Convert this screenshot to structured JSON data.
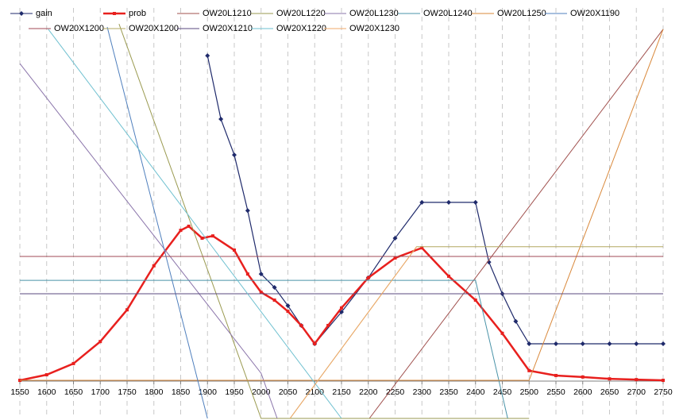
{
  "chart_data": {
    "type": "line",
    "xlim": [
      1550,
      2750
    ],
    "xticks": [
      1550,
      1600,
      1650,
      1700,
      1750,
      1800,
      1850,
      1900,
      1950,
      2000,
      2050,
      2100,
      2150,
      2200,
      2250,
      2300,
      2350,
      2400,
      2450,
      2500,
      2550,
      2600,
      2650,
      2700,
      2750
    ],
    "ylim": [
      -10,
      100
    ],
    "grid": true,
    "legend": "top",
    "series": [
      {
        "name": "gain",
        "color": "#1f2a6b",
        "marker": "diamond",
        "x": [
          1900,
          1925,
          1950,
          1975,
          2000,
          2025,
          2050,
          2075,
          2100,
          2150,
          2200,
          2250,
          2300,
          2350,
          2400,
          2425,
          2450,
          2475,
          2500,
          2550,
          2600,
          2650,
          2700,
          2750
        ],
        "values": [
          87.2,
          70.2,
          60.6,
          45.7,
          28.7,
          25.1,
          20.2,
          14.9,
          10,
          18.5,
          27.7,
          38.3,
          47.9,
          47.9,
          47.9,
          31.9,
          23.4,
          16,
          10,
          10,
          10,
          10,
          10,
          10
        ]
      },
      {
        "name": "prob",
        "color": "#e8201e",
        "marker": "square",
        "x": [
          1550,
          1600,
          1650,
          1700,
          1750,
          1800,
          1850,
          1865,
          1890,
          1910,
          1950,
          1975,
          2000,
          2025,
          2050,
          2075,
          2100,
          2125,
          2150,
          2200,
          2250,
          2300,
          2350,
          2400,
          2450,
          2500,
          2550,
          2600,
          2650,
          2700,
          2750
        ],
        "values": [
          0.2,
          1.7,
          4.7,
          10.6,
          19.1,
          30.9,
          40.4,
          41.5,
          38.3,
          38.9,
          35.1,
          28.7,
          23.8,
          21.7,
          18.7,
          14.9,
          10,
          14.9,
          19.6,
          27.7,
          33,
          35.7,
          28.1,
          21.7,
          12.8,
          2.8,
          1.5,
          1.1,
          0.6,
          0.4,
          0.2
        ]
      },
      {
        "name": "OW20L1210",
        "color": "#a0504d",
        "x": [
          2202,
          2750
        ],
        "values": [
          -10,
          94.3
        ]
      },
      {
        "name": "OW20L1220",
        "color": "#9a9a50",
        "x": [
          1735,
          2000,
          2500
        ],
        "values": [
          95.7,
          -10,
          -10
        ]
      },
      {
        "name": "OW20L1230",
        "color": "#8a74aa",
        "x": [
          1550,
          2000,
          2030
        ],
        "values": [
          85.1,
          2.1,
          -10
        ]
      },
      {
        "name": "OW20L1240",
        "color": "#4a93a8",
        "x": [
          1550,
          2400,
          2460
        ],
        "values": [
          27,
          27,
          -10
        ]
      },
      {
        "name": "OW20L1250",
        "color": "#d9883a",
        "x": [
          1550,
          2500,
          2750
        ],
        "values": [
          0.2,
          0.2,
          94.3
        ]
      },
      {
        "name": "OW20X1190",
        "color": "#4f7fbd",
        "x": [
          1713,
          1900
        ],
        "values": [
          94.9,
          -10
        ]
      },
      {
        "name": "OW20X1200",
        "color": "#a04a55",
        "x": [
          1550,
          2750
        ],
        "values": [
          33.4,
          33.4
        ]
      },
      {
        "name": "OW20X1200",
        "color": "#b3a860",
        "x": [
          2054,
          2290,
          2750
        ],
        "values": [
          -10,
          36,
          36
        ]
      },
      {
        "name": "OW20X1210",
        "color": "#5a4a7f",
        "x": [
          1550,
          2750
        ],
        "values": [
          23.4,
          23.4
        ]
      },
      {
        "name": "OW20X1220",
        "color": "#6ec0d0",
        "x": [
          1603,
          2150
        ],
        "values": [
          94.3,
          -10
        ]
      },
      {
        "name": "OW20X1230",
        "color": "#f0a868",
        "x": [
          2054,
          2290
        ],
        "values": [
          -10,
          36
        ]
      }
    ]
  }
}
